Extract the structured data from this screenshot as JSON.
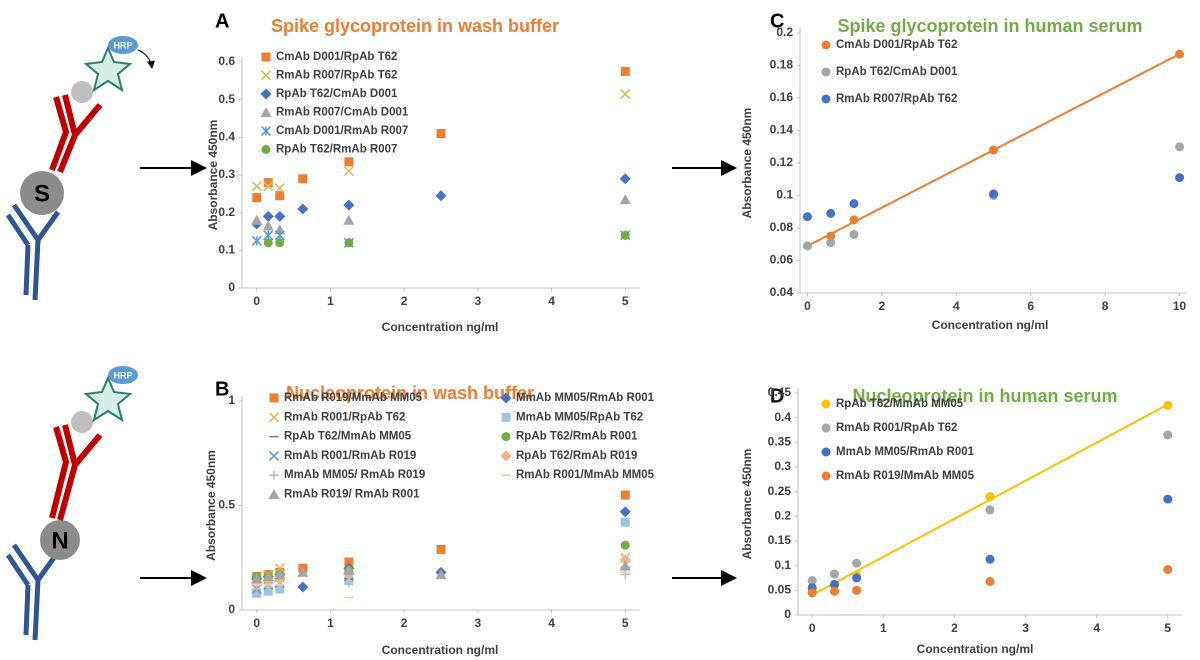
{
  "chart_data": [
    {
      "type": "scatter",
      "label": "A",
      "title": "Spike glycoprotein in wash buffer",
      "title_color": "#ED7D31",
      "x_label": "Concentration ng/ml",
      "y_label": "Absorbance 450nm",
      "x": [
        0,
        0.156,
        0.3125,
        0.625,
        1.25,
        2.5,
        5
      ],
      "xlim": [
        -0.2,
        5.2
      ],
      "xticks": [
        0,
        1,
        2,
        3,
        4,
        5
      ],
      "ylim": [
        0,
        0.6
      ],
      "yticks": [
        0,
        0.1,
        0.2,
        0.3,
        0.4,
        0.5,
        0.6
      ],
      "legend": "upper-left",
      "legend_columns": 1,
      "series": [
        {
          "name": "CmAb D001/RpAb T62",
          "color": "#ED7D31",
          "marker": "square",
          "values": [
            0.24,
            0.28,
            0.245,
            0.29,
            0.335,
            0.41,
            0.575
          ]
        },
        {
          "name": "RmAb R007/RpAb T62",
          "color": "#D9BD5A",
          "marker": "x",
          "values": [
            0.27,
            0.27,
            0.265,
            null,
            0.31,
            null,
            0.515
          ]
        },
        {
          "name": "RpAb T62/CmAb D001",
          "color": "#4472C4",
          "marker": "diamond",
          "values": [
            0.17,
            0.19,
            0.19,
            0.21,
            0.22,
            0.245,
            0.29
          ]
        },
        {
          "name": "RmAb R007/CmAb  D001",
          "color": "#A5A5A5",
          "marker": "triangle",
          "values": [
            0.18,
            0.165,
            0.155,
            null,
            0.18,
            null,
            0.235
          ]
        },
        {
          "name": "CmAb D001/RmAb R007",
          "color": "#5B9BD5",
          "marker": "asterisk",
          "values": [
            0.125,
            0.14,
            0.14,
            null,
            0.12,
            null,
            0.14
          ]
        },
        {
          "name": "RpAb T62/RmAb R007",
          "color": "#70AD47",
          "marker": "circle",
          "values": [
            null,
            0.12,
            0.12,
            null,
            0.12,
            null,
            0.14
          ]
        }
      ]
    },
    {
      "type": "scatter",
      "label": "B",
      "title": "Nucleoprotein in wash buffer",
      "title_color": "#ED7D31",
      "x_label": "Concentration ng/ml",
      "y_label": "Absorbance 450nm",
      "x": [
        0,
        0.156,
        0.3125,
        0.625,
        1.25,
        2.5,
        5
      ],
      "xlim": [
        -0.2,
        5.2
      ],
      "xticks": [
        0,
        1,
        2,
        3,
        4,
        5
      ],
      "ylim": [
        0,
        1
      ],
      "yticks": [
        0,
        0.5,
        1
      ],
      "legend": "upper-left",
      "legend_columns": 2,
      "series": [
        {
          "name": "RmAb R019/MmAb MM05",
          "color": "#ED7D31",
          "marker": "square",
          "values": [
            0.16,
            0.17,
            0.18,
            0.2,
            0.23,
            0.29,
            0.55
          ]
        },
        {
          "name": "MmAb MM05/RmAb R001",
          "color": "#4472C4",
          "marker": "diamond",
          "values": [
            0.15,
            0.16,
            0.17,
            0.11,
            0.2,
            0.18,
            0.47
          ]
        },
        {
          "name": "RmAb R001/RpAb T62",
          "color": "#E2B65A",
          "marker": "x",
          "values": [
            0.15,
            0.17,
            0.2,
            null,
            0.17,
            null,
            0.25
          ]
        },
        {
          "name": "MmAb MM05/RpAb T62",
          "color": "#9DC3E6",
          "marker": "square",
          "values": [
            0.08,
            0.09,
            0.1,
            null,
            0.14,
            null,
            0.42
          ]
        },
        {
          "name": "RpAb T62/MmAb MM05",
          "color": "#7F7F7F",
          "marker": "dash",
          "values": [
            0.12,
            0.13,
            0.14,
            null,
            0.15,
            null,
            0.2
          ]
        },
        {
          "name": "RpAb T62/RmAb R001",
          "color": "#70AD47",
          "marker": "circle",
          "values": [
            0.16,
            0.16,
            0.17,
            null,
            0.19,
            null,
            0.31
          ]
        },
        {
          "name": "RmAb R001/RmAb R019",
          "color": "#5B9BD5",
          "marker": "x",
          "values": [
            0.1,
            0.12,
            0.13,
            null,
            0.16,
            null,
            0.22
          ]
        },
        {
          "name": "RpAb T62/RmAb R019",
          "color": "#F4B183",
          "marker": "diamond",
          "values": [
            0.13,
            0.14,
            0.15,
            null,
            0.17,
            null,
            0.24
          ]
        },
        {
          "name": "MmAb MM05/ RmAb R019",
          "color": "#BFBFBF",
          "marker": "plus",
          "values": [
            0.1,
            0.11,
            0.12,
            null,
            0.13,
            null,
            0.17
          ]
        },
        {
          "name": "RmAb R001/MmAb MM05",
          "color": "#F8CBAD",
          "marker": "dash",
          "values": [
            0.12,
            0.12,
            0.12,
            null,
            0.06,
            null,
            0.18
          ]
        },
        {
          "name": "RmAb R019/ RmAb R001",
          "color": "#A5A5A5",
          "marker": "triangle",
          "values": [
            0.15,
            0.16,
            0.17,
            0.18,
            0.19,
            0.17,
            0.21
          ]
        }
      ]
    },
    {
      "type": "scatter",
      "label": "C",
      "title": "Spike glycoprotein in human serum",
      "title_color": "#70AD47",
      "x_label": "Concentration ng/ml",
      "y_label": "Absorbance 450nm",
      "x": [
        0,
        0.625,
        1.25,
        5,
        10
      ],
      "xlim": [
        -0.2,
        10.2
      ],
      "xticks": [
        0,
        2,
        4,
        6,
        8,
        10
      ],
      "ylim": [
        0.04,
        0.2
      ],
      "yticks": [
        0.04,
        0.06,
        0.08,
        0.1,
        0.12,
        0.14,
        0.16,
        0.18,
        0.2
      ],
      "legend": "upper-left",
      "legend_columns": 1,
      "trendline_series": 0,
      "series": [
        {
          "name": "CmAb D001/RpAb T62",
          "color": "#ED7D31",
          "marker": "circle",
          "values": [
            0.069,
            0.075,
            0.085,
            0.128,
            0.187
          ]
        },
        {
          "name": "RpAb T62/CmAb D001",
          "color": "#A5A5A5",
          "marker": "circle",
          "values": [
            0.069,
            0.071,
            0.076,
            0.1,
            0.13
          ]
        },
        {
          "name": "RmAb R007/RpAb T62",
          "color": "#4472C4",
          "marker": "circle",
          "values": [
            0.087,
            0.089,
            0.095,
            0.101,
            0.111
          ]
        }
      ]
    },
    {
      "type": "scatter",
      "label": "D",
      "title": "Nucleoprotein in human serum",
      "title_color": "#70AD47",
      "x_label": "Concentration ng/ml",
      "y_label": "Absorbance 450nm",
      "x": [
        0,
        0.3125,
        0.625,
        2.5,
        5
      ],
      "xlim": [
        -0.2,
        5.2
      ],
      "xticks": [
        0,
        1,
        2,
        3,
        4,
        5
      ],
      "ylim": [
        0,
        0.45
      ],
      "yticks": [
        0,
        0.05,
        0.1,
        0.15,
        0.2,
        0.25,
        0.3,
        0.35,
        0.4,
        0.45
      ],
      "legend": "upper-left",
      "legend_columns": 1,
      "trendline_series": 0,
      "series": [
        {
          "name": "RpAb T62/MmAb MM05",
          "color": "#FFC000",
          "marker": "circle",
          "values": [
            0.05,
            0.06,
            0.08,
            0.24,
            0.425
          ]
        },
        {
          "name": "RmAb R001/RpAb T62",
          "color": "#A5A5A5",
          "marker": "circle",
          "values": [
            0.07,
            0.083,
            0.105,
            0.213,
            0.365
          ]
        },
        {
          "name": "MmAb MM05/RmAb R001",
          "color": "#4472C4",
          "marker": "circle",
          "values": [
            0.055,
            0.062,
            0.075,
            0.113,
            0.235
          ]
        },
        {
          "name": "RmAb R019/MmAb MM05",
          "color": "#ED7D31",
          "marker": "circle",
          "values": [
            0.045,
            0.048,
            0.05,
            0.068,
            0.092
          ]
        }
      ]
    }
  ],
  "diagrams": [
    {
      "antigen": "S",
      "enzyme": "HRP"
    },
    {
      "antigen": "N",
      "enzyme": "HRP"
    }
  ]
}
